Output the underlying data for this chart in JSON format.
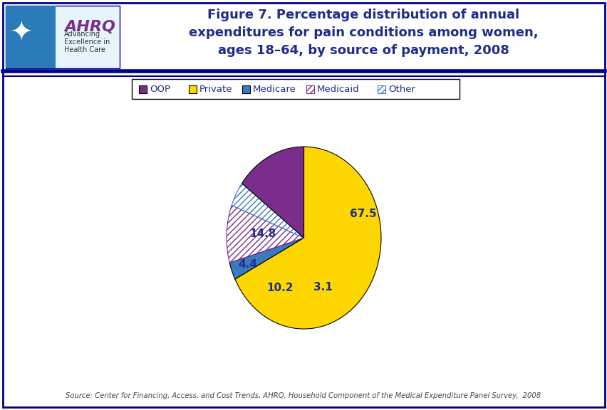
{
  "title": "Figure 7. Percentage distribution of annual\nexpenditures for pain conditions among women,\nages 18–64, by source of payment, 2008",
  "source": "Source: Center for Financing, Access, and Cost Trends, AHRQ, Household Component of the Medical Expenditure Panel Survey,  2008",
  "slices": [
    67.5,
    3.1,
    10.2,
    4.4,
    14.8
  ],
  "labels": [
    "Private",
    "Medicare",
    "Medicaid",
    "Other",
    "OOP"
  ],
  "label_values": [
    "67.5",
    "3.1",
    "10.2",
    "4.4",
    "14.8"
  ],
  "colors": [
    "#FFD700",
    "#3A7ABF",
    "white",
    "white",
    "#7B2D8B"
  ],
  "hatch": [
    null,
    null,
    "////",
    "////",
    null
  ],
  "hatch_colors": [
    null,
    null,
    "#7B2D8B",
    "#3A7ABF",
    null
  ],
  "background_color": "#FFFFFF",
  "border_color": "#00008B",
  "title_color": "#1F2D8A",
  "legend_items": [
    {
      "label": "OOP",
      "fc": "#7B2D8B",
      "ec": "black",
      "hatch": null
    },
    {
      "label": "Private",
      "fc": "#FFD700",
      "ec": "black",
      "hatch": null
    },
    {
      "label": "Medicare",
      "fc": "#3A7ABF",
      "ec": "black",
      "hatch": null
    },
    {
      "label": "Medicaid",
      "fc": "white",
      "ec": "#7B2D8B",
      "hatch": "////"
    },
    {
      "label": "Other",
      "fc": "white",
      "ec": "#3A7ABF",
      "hatch": "////"
    }
  ],
  "label_offsets": {
    "67.5": [
      0.55,
      0.22
    ],
    "3.1": [
      0.18,
      -0.46
    ],
    "10.2": [
      -0.22,
      -0.47
    ],
    "4.4": [
      -0.52,
      -0.25
    ],
    "14.8": [
      -0.38,
      0.04
    ]
  }
}
